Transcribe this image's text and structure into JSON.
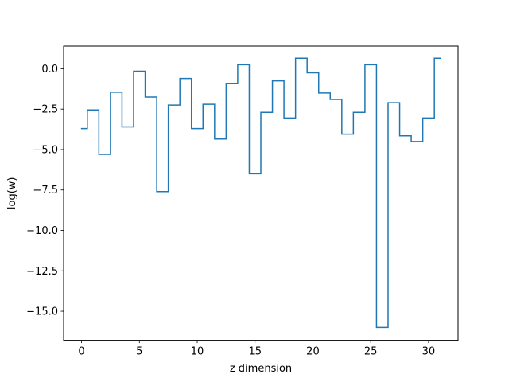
{
  "chart_data": {
    "type": "line",
    "drawstyle": "steps-mid",
    "title": "",
    "xlabel": "z dimension",
    "ylabel": "log(w)",
    "xlim": [
      -1.55,
      32.55
    ],
    "ylim": [
      -16.8,
      1.4
    ],
    "grid": false,
    "line_color": "#1f77b4",
    "x": [
      0,
      1,
      2,
      3,
      4,
      5,
      6,
      7,
      8,
      9,
      10,
      11,
      12,
      13,
      14,
      15,
      16,
      17,
      18,
      19,
      20,
      21,
      22,
      23,
      24,
      25,
      26,
      27,
      28,
      29,
      30,
      31
    ],
    "series": [
      {
        "values": [
          -3.7,
          -2.55,
          -5.3,
          -1.45,
          -3.6,
          -0.15,
          -1.75,
          -7.6,
          -2.25,
          -0.6,
          -3.7,
          -2.2,
          -4.35,
          -0.9,
          0.25,
          -6.5,
          -2.7,
          -0.75,
          -3.05,
          0.65,
          -0.25,
          -1.5,
          -1.9,
          -4.05,
          -2.7,
          0.25,
          -16.0,
          -2.1,
          -4.15,
          -4.5,
          -3.05,
          0.65
        ]
      }
    ],
    "xticks": [
      0,
      5,
      10,
      15,
      20,
      25,
      30
    ],
    "xtick_labels": [
      "0",
      "5",
      "10",
      "15",
      "20",
      "25",
      "30"
    ],
    "yticks": [
      0.0,
      -2.5,
      -5.0,
      -7.5,
      -10.0,
      -12.5,
      -15.0
    ],
    "ytick_labels": [
      "0.0",
      "−2.5",
      "−5.0",
      "−7.5",
      "−10.0",
      "−12.5",
      "−15.0"
    ]
  }
}
